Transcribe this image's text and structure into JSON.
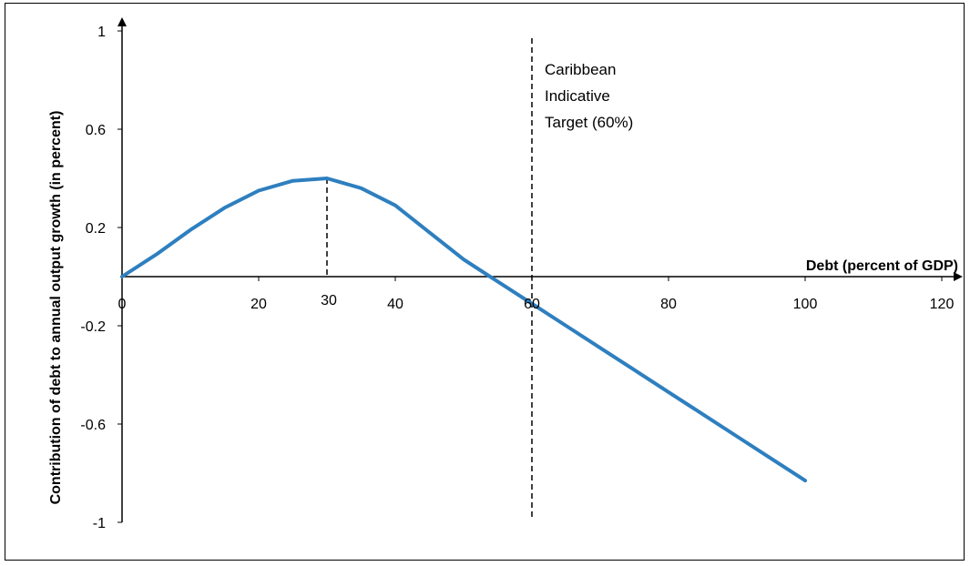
{
  "chart_data": {
    "type": "line",
    "title": "",
    "xlabel": "Debt (percent of GDP)",
    "ylabel": "Contribution of debt to annual output growth (in percent)",
    "xlim": [
      0,
      120
    ],
    "ylim": [
      -1,
      1
    ],
    "x_ticks": [
      0,
      20,
      40,
      60,
      80,
      100,
      120
    ],
    "y_ticks": [
      1,
      0.6,
      0.2,
      -0.2,
      -0.6,
      -1
    ],
    "y_tick_labels": [
      "1",
      "0.6",
      "0.2",
      "-0.2",
      "-0.6",
      "-1"
    ],
    "grid": false,
    "legend": "none",
    "series_color": "#2E7FBF",
    "series": [
      {
        "x": [
          0,
          5,
          10,
          15,
          20,
          25,
          30,
          35,
          40,
          45,
          50,
          55,
          60,
          65,
          70,
          75,
          80,
          85,
          90,
          95,
          100
        ],
        "y": [
          0,
          0.09,
          0.19,
          0.28,
          0.35,
          0.39,
          0.4,
          0.36,
          0.29,
          0.18,
          0.07,
          -0.02,
          -0.11,
          -0.2,
          -0.29,
          -0.38,
          -0.47,
          -0.56,
          -0.65,
          -0.74,
          -0.83
        ]
      }
    ],
    "peak_marker": {
      "x": 30,
      "y": 0.4,
      "label": "30"
    },
    "reference_line": {
      "x": 60,
      "label_lines": [
        "Caribbean",
        "Indicative",
        "Target (60%)"
      ]
    }
  }
}
